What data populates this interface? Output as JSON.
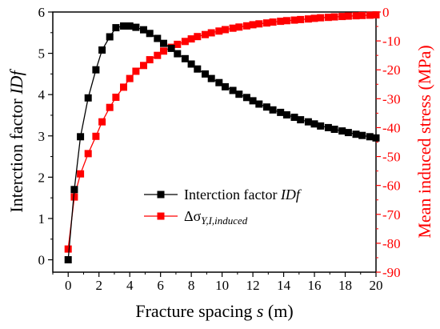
{
  "chart_data": {
    "type": "line",
    "xlabel_prefix": "Fracture spacing ",
    "xlabel_var": "s",
    "xlabel_suffix": " (m)",
    "ylabel_left_prefix": "Interction factor ",
    "ylabel_left_var": "IDf",
    "ylabel_right": "Mean induced stress (MPa)",
    "xlim": [
      -1,
      20
    ],
    "ylim_left": [
      -0.3,
      6
    ],
    "ylim_right": [
      -90,
      0
    ],
    "xticks": [
      0,
      2,
      4,
      6,
      8,
      10,
      12,
      14,
      16,
      18,
      20
    ],
    "yticks_left": [
      0,
      1,
      2,
      3,
      4,
      5,
      6
    ],
    "yticks_right": [
      0,
      -10,
      -20,
      -30,
      -40,
      -50,
      -60,
      -70,
      -80,
      -90
    ],
    "colors": {
      "left_series": "#000000",
      "right_series": "#ff0000"
    },
    "legend_position": "lower-center",
    "series": [
      {
        "name_prefix": "Interction factor ",
        "name_var": "IDf",
        "axis": "left",
        "x": [
          0,
          0.4,
          0.8,
          1.3,
          1.8,
          2.2,
          2.7,
          3.1,
          3.6,
          4.0,
          4.4,
          4.9,
          5.3,
          5.8,
          6.2,
          6.7,
          7.1,
          7.6,
          8.0,
          8.4,
          8.9,
          9.3,
          9.8,
          10.2,
          10.7,
          11.1,
          11.6,
          12.0,
          12.4,
          12.9,
          13.3,
          13.8,
          14.2,
          14.7,
          15.1,
          15.6,
          16.0,
          16.4,
          16.9,
          17.3,
          17.8,
          18.2,
          18.7,
          19.1,
          19.6,
          20.0
        ],
        "values": [
          0.0,
          1.7,
          2.98,
          3.92,
          4.6,
          5.08,
          5.4,
          5.62,
          5.66,
          5.66,
          5.63,
          5.57,
          5.48,
          5.36,
          5.24,
          5.12,
          4.99,
          4.87,
          4.74,
          4.62,
          4.5,
          4.39,
          4.29,
          4.19,
          4.1,
          4.01,
          3.93,
          3.85,
          3.77,
          3.7,
          3.63,
          3.57,
          3.51,
          3.45,
          3.39,
          3.34,
          3.29,
          3.24,
          3.2,
          3.16,
          3.12,
          3.08,
          3.04,
          3.01,
          2.98,
          2.95
        ]
      },
      {
        "name_prefix": "Δσ",
        "name_sub": "Y,I,induced",
        "axis": "right",
        "x": [
          0,
          0.4,
          0.8,
          1.3,
          1.8,
          2.2,
          2.7,
          3.1,
          3.6,
          4.0,
          4.4,
          4.9,
          5.3,
          5.8,
          6.2,
          6.7,
          7.1,
          7.6,
          8.0,
          8.4,
          8.9,
          9.3,
          9.8,
          10.2,
          10.7,
          11.1,
          11.6,
          12.0,
          12.4,
          12.9,
          13.3,
          13.8,
          14.2,
          14.7,
          15.1,
          15.6,
          16.0,
          16.4,
          16.9,
          17.3,
          17.8,
          18.2,
          18.7,
          19.1,
          19.6,
          20.0
        ],
        "values": [
          -82,
          -64,
          -56,
          -49,
          -43,
          -38,
          -33,
          -29.5,
          -26,
          -23,
          -20.5,
          -18.5,
          -16.5,
          -15,
          -13.5,
          -12.2,
          -11.2,
          -10.2,
          -9.3,
          -8.5,
          -7.8,
          -7.2,
          -6.6,
          -6.1,
          -5.6,
          -5.2,
          -4.8,
          -4.4,
          -4.1,
          -3.8,
          -3.5,
          -3.2,
          -3.0,
          -2.8,
          -2.6,
          -2.4,
          -2.2,
          -2.0,
          -1.85,
          -1.7,
          -1.55,
          -1.4,
          -1.3,
          -1.2,
          -1.1,
          -1.0
        ]
      }
    ]
  }
}
